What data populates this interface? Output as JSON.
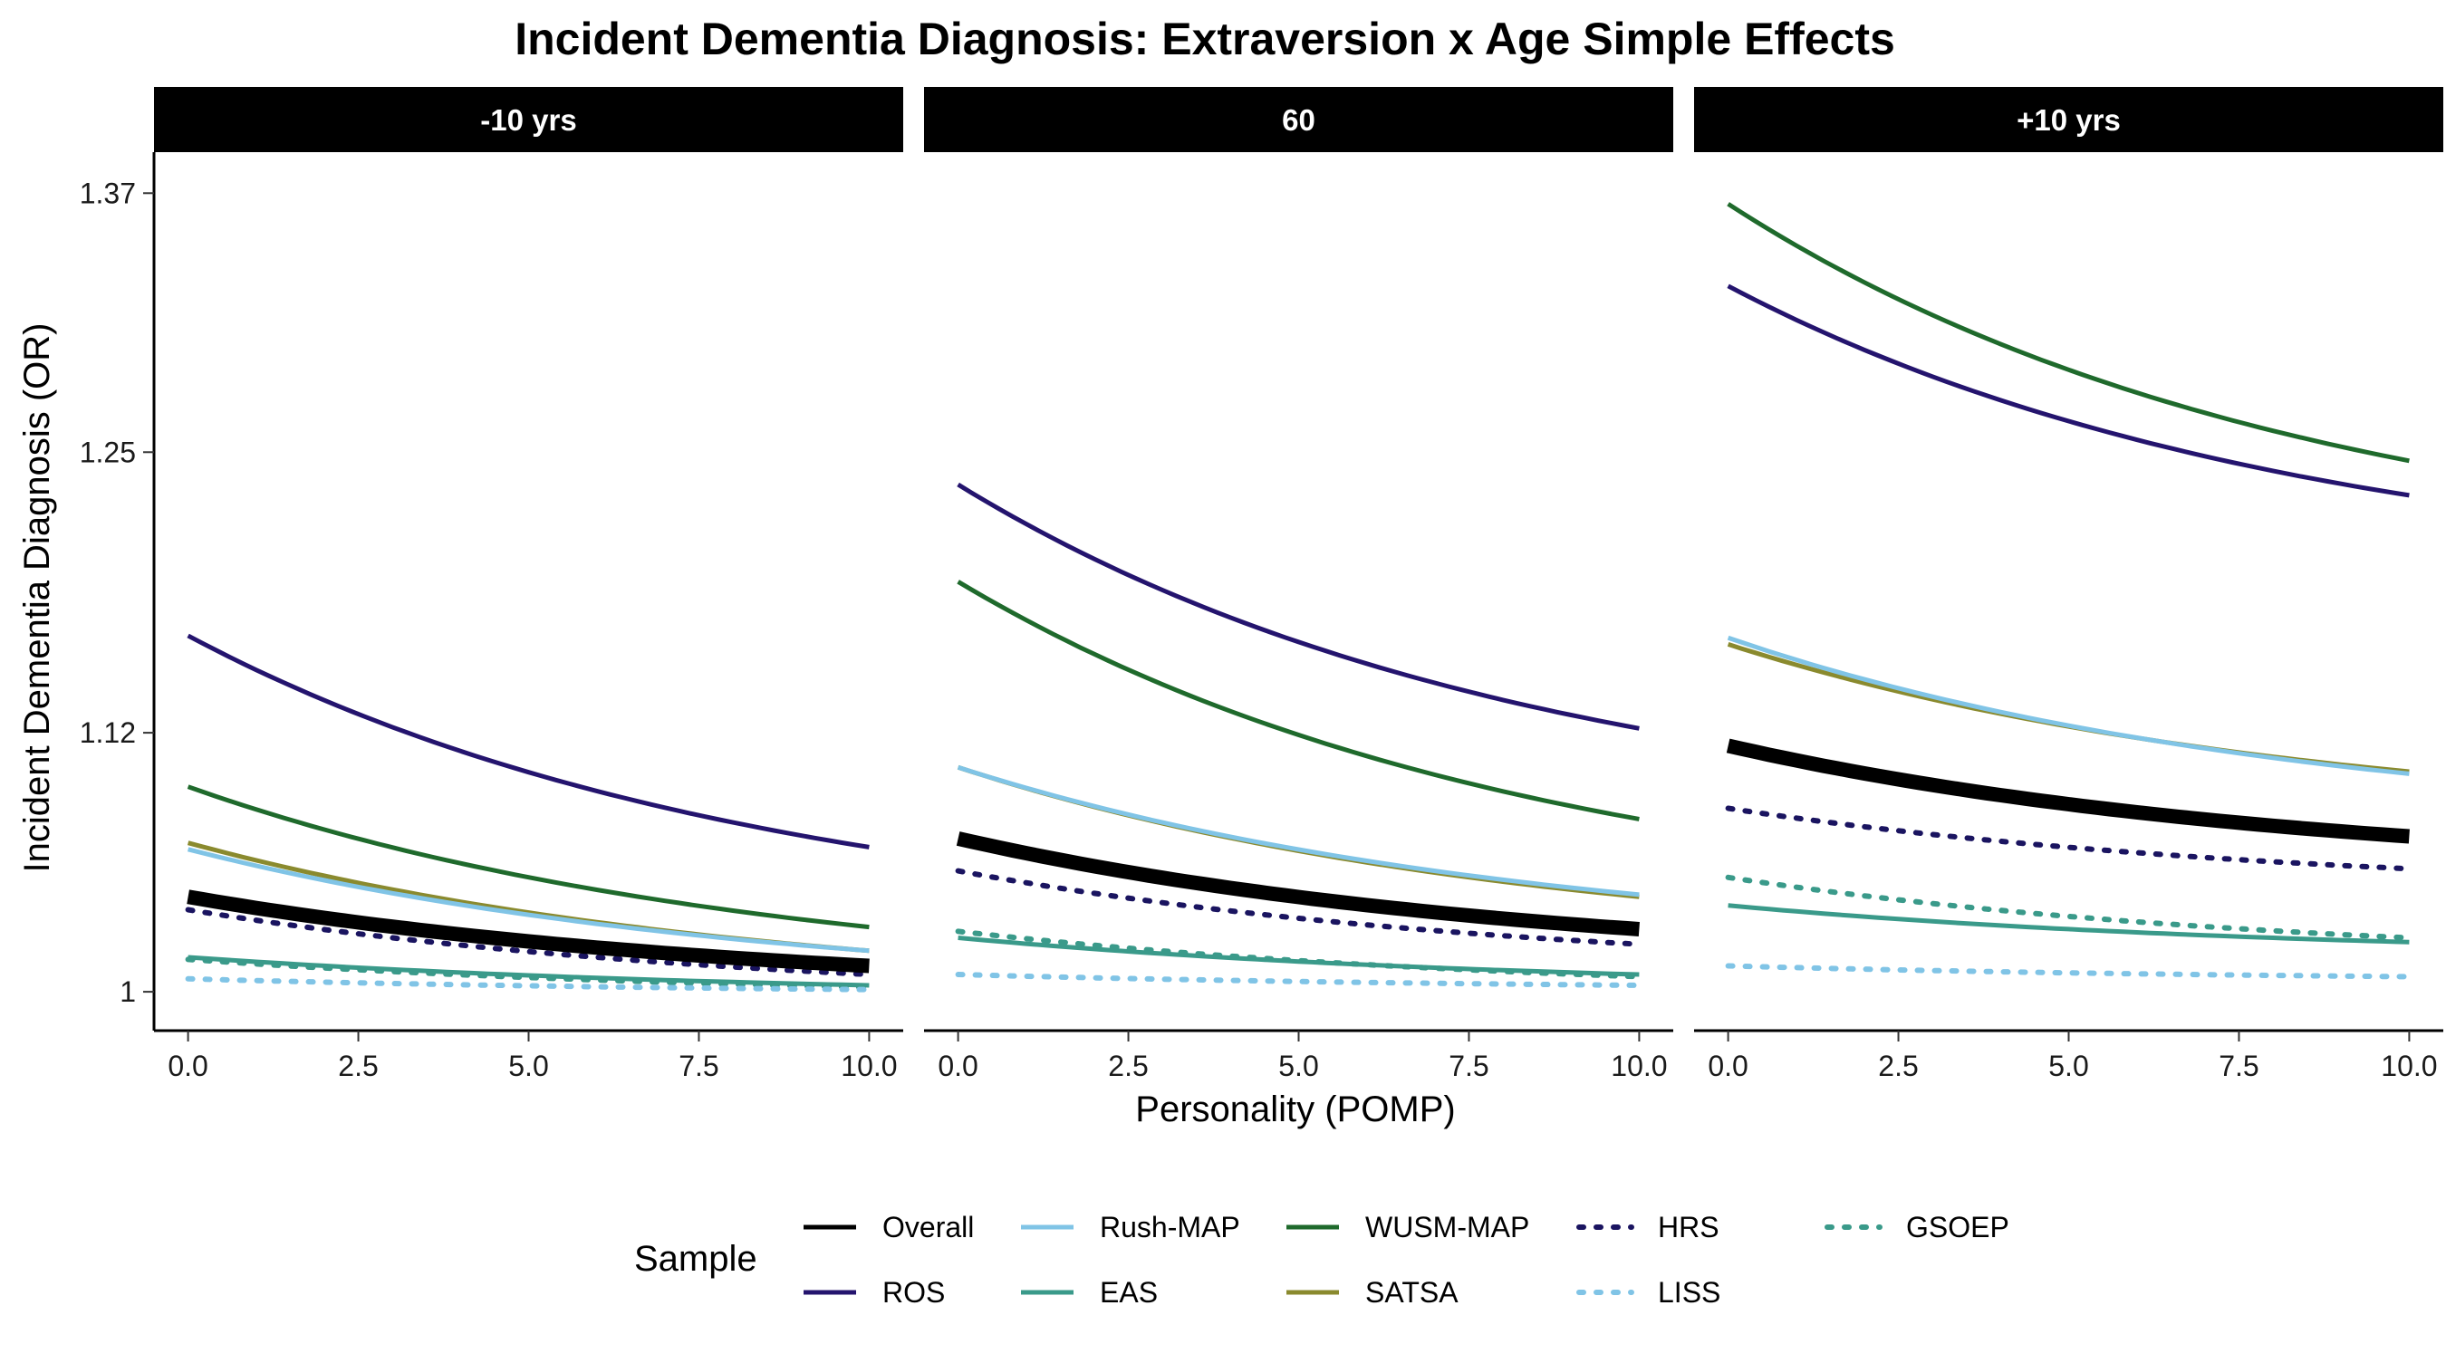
{
  "chart_data": {
    "type": "line",
    "title": "Incident Dementia Diagnosis: Extraversion x Age Simple Effects",
    "xlabel": "Personality (POMP)",
    "ylabel": "Incident Dementia Diagnosis (OR)",
    "xlim": [
      -0.5,
      10.5
    ],
    "ylim": [
      0.982,
      1.389
    ],
    "x_ticks": [
      0,
      2.5,
      5,
      7.5,
      10
    ],
    "x_tick_labels": [
      "0.0",
      "2.5",
      "5.0",
      "7.5",
      "10.0"
    ],
    "y_ticks": [
      1,
      1.12,
      1.25,
      1.37
    ],
    "y_tick_labels": [
      "1",
      "1.12",
      "1.25",
      "1.37"
    ],
    "grid": false,
    "legend": {
      "title": "Sample",
      "position": "bottom",
      "entries": [
        "Overall",
        "ROS",
        "Rush-MAP",
        "EAS",
        "WUSM-MAP",
        "SATSA",
        "HRS",
        "LISS",
        "GSOEP"
      ]
    },
    "series_styles": {
      "Overall": {
        "color": "#000000",
        "dash": "solid",
        "overall": true
      },
      "ROS": {
        "color": "#24146e",
        "dash": "solid"
      },
      "Rush-MAP": {
        "color": "#80c4e6",
        "dash": "solid"
      },
      "EAS": {
        "color": "#3a9a8a",
        "dash": "solid"
      },
      "WUSM-MAP": {
        "color": "#1f6a2c",
        "dash": "solid"
      },
      "SATSA": {
        "color": "#8a8a2e",
        "dash": "solid"
      },
      "HRS": {
        "color": "#1a1460",
        "dash": "dotted"
      },
      "LISS": {
        "color": "#80c4e6",
        "dash": "dotted"
      },
      "GSOEP": {
        "color": "#3a9a8a",
        "dash": "dotted"
      }
    },
    "panels": [
      {
        "label": "-10 yrs",
        "series": [
          {
            "name": "WUSM-MAP",
            "start": 1.095,
            "end": 1.03
          },
          {
            "name": "ROS",
            "start": 1.165,
            "end": 1.067
          },
          {
            "name": "SATSA",
            "start": 1.069,
            "end": 1.019
          },
          {
            "name": "Rush-MAP",
            "start": 1.066,
            "end": 1.019
          },
          {
            "name": "EAS",
            "start": 1.016,
            "end": 1.003
          },
          {
            "name": "GSOEP",
            "start": 1.015,
            "end": 1.002
          },
          {
            "name": "LISS",
            "start": 1.006,
            "end": 1.001
          },
          {
            "name": "HRS",
            "start": 1.038,
            "end": 1.008
          },
          {
            "name": "Overall",
            "start": 1.044,
            "end": 1.012
          }
        ]
      },
      {
        "label": "60",
        "series": [
          {
            "name": "WUSM-MAP",
            "start": 1.19,
            "end": 1.08
          },
          {
            "name": "ROS",
            "start": 1.235,
            "end": 1.122
          },
          {
            "name": "SATSA",
            "start": 1.104,
            "end": 1.044
          },
          {
            "name": "Rush-MAP",
            "start": 1.104,
            "end": 1.045
          },
          {
            "name": "EAS",
            "start": 1.025,
            "end": 1.008
          },
          {
            "name": "GSOEP",
            "start": 1.028,
            "end": 1.007
          },
          {
            "name": "LISS",
            "start": 1.008,
            "end": 1.003
          },
          {
            "name": "HRS",
            "start": 1.056,
            "end": 1.022
          },
          {
            "name": "Overall",
            "start": 1.071,
            "end": 1.029
          }
        ]
      },
      {
        "label": "+10 yrs",
        "series": [
          {
            "name": "WUSM-MAP",
            "start": 1.365,
            "end": 1.246
          },
          {
            "name": "ROS",
            "start": 1.327,
            "end": 1.23
          },
          {
            "name": "SATSA",
            "start": 1.161,
            "end": 1.102
          },
          {
            "name": "Rush-MAP",
            "start": 1.164,
            "end": 1.101
          },
          {
            "name": "EAS",
            "start": 1.04,
            "end": 1.023
          },
          {
            "name": "GSOEP",
            "start": 1.053,
            "end": 1.025
          },
          {
            "name": "LISS",
            "start": 1.012,
            "end": 1.007
          },
          {
            "name": "HRS",
            "start": 1.085,
            "end": 1.057
          },
          {
            "name": "Overall",
            "start": 1.114,
            "end": 1.072
          }
        ]
      }
    ]
  }
}
